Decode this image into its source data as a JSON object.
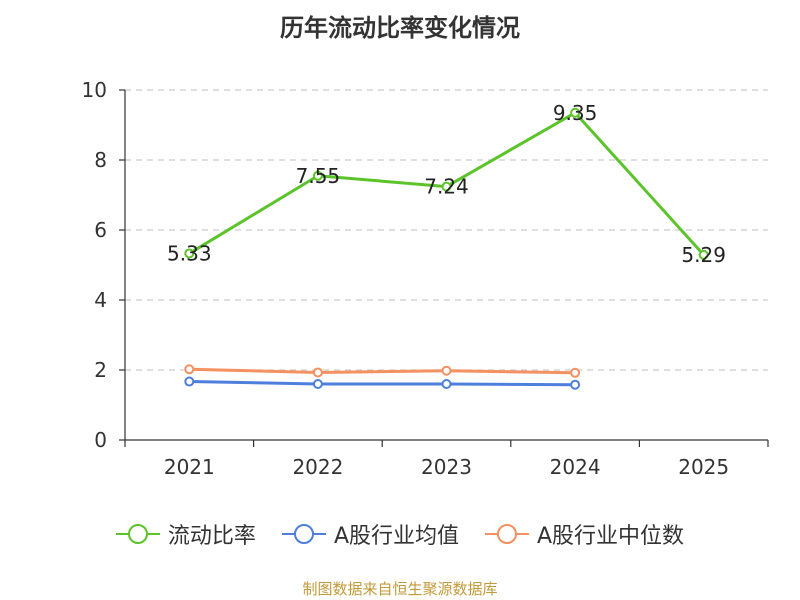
{
  "chart_data": {
    "type": "line",
    "title": "历年流动比率变化情况",
    "categories": [
      "2021",
      "2022",
      "2023",
      "2024",
      "2025"
    ],
    "ylim": [
      0,
      10
    ],
    "yticks": [
      0,
      2,
      4,
      6,
      8,
      10
    ],
    "grid": true,
    "legend_position": "bottom",
    "series": [
      {
        "name": "流动比率",
        "color": "#5cc42a",
        "values": [
          5.33,
          7.55,
          7.24,
          9.35,
          5.29
        ],
        "labels": [
          "5.33",
          "7.55",
          "7.24",
          "9.35",
          "5.29"
        ]
      },
      {
        "name": "A股行业均值",
        "color": "#4e7fdc",
        "values": [
          1.67,
          1.6,
          1.6,
          1.58,
          null
        ]
      },
      {
        "name": "A股行业中位数",
        "color": "#f59060",
        "values": [
          2.02,
          1.93,
          1.98,
          1.92,
          null
        ]
      }
    ]
  },
  "source": "制图数据来自恒生聚源数据库"
}
